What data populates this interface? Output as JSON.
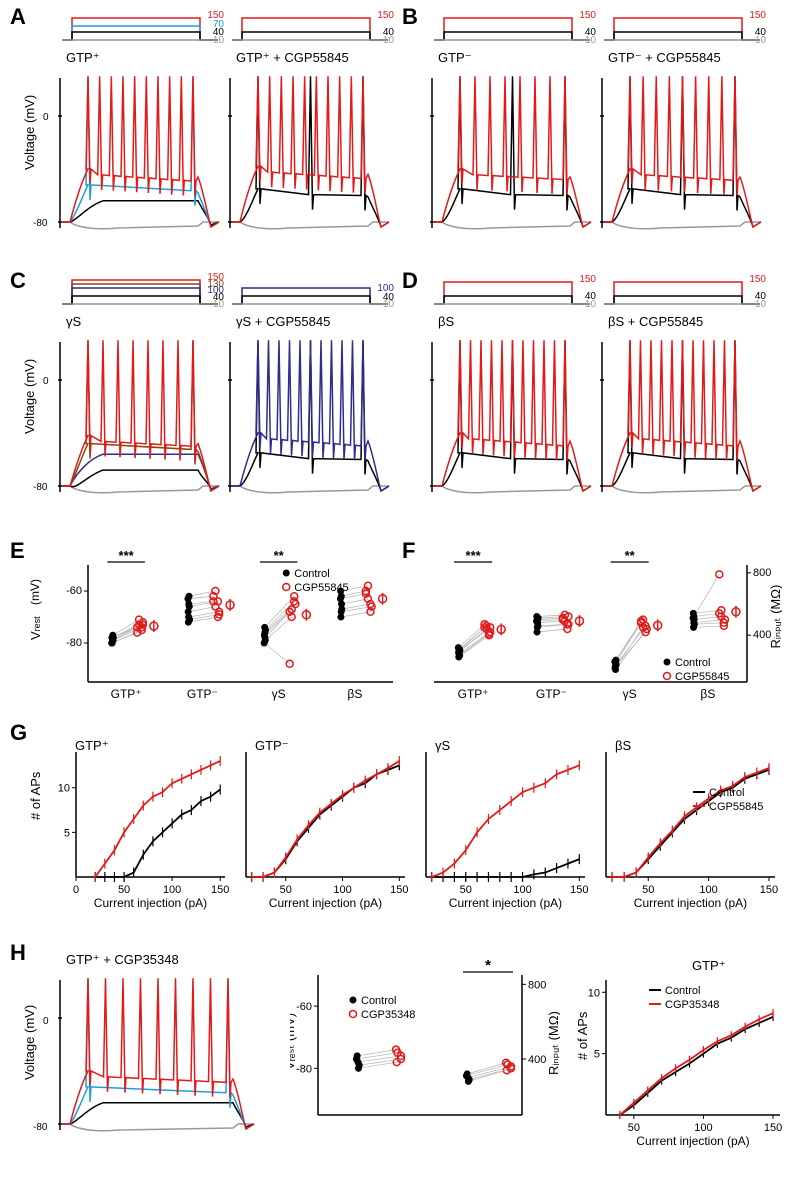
{
  "labels": {
    "A": "A",
    "B": "B",
    "C": "C",
    "D": "D",
    "E": "E",
    "F": "F",
    "G": "G",
    "H": "H"
  },
  "conditions": {
    "gtp_pos": "GTP⁺",
    "gtp_pos_cgp": "GTP⁺ + CGP55845",
    "gtp_neg": "GTP⁻",
    "gtp_neg_cgp": "GTP⁻ + CGP55845",
    "gammaS": "γS",
    "gammaS_cgp": "γS + CGP55845",
    "betaS": "βS",
    "betaS_cgp": "βS + CGP55845",
    "gtp_pos_cgp35": "GTP⁺ + CGP35348"
  },
  "stim_values": {
    "neg10": "-10",
    "v40": "40",
    "v70": "70",
    "v100": "100",
    "v130": "130",
    "v150": "150"
  },
  "colors": {
    "neg10": "#999999",
    "v40": "#000000",
    "v70": "#1f9dd9",
    "v100": "#2b2d8f",
    "v130": "#8b4513",
    "v150": "#e21a1a",
    "control": "#000000",
    "cgp": "#e21a1a",
    "cgp35": "#e21a1a"
  },
  "axes": {
    "voltage_label": "Voltage (mV)",
    "vrest_label": "V",
    "vrest_sub": "rest",
    "vrest_unit": "(mV)",
    "rinput_label": "R",
    "rinput_sub": "input",
    "rinput_unit": "(MΩ)",
    "nAPs": "# of APs",
    "current_label": "Current injection (pA)",
    "v0": "0",
    "vm80": "-80",
    "vm60": "-60",
    "r400": "400",
    "r800": "800",
    "ap5": "5",
    "ap10": "10",
    "c0": "0",
    "c50": "50",
    "c100": "100",
    "c150": "150"
  },
  "legend": {
    "control": "Control",
    "cgp55845": "CGP55845",
    "cgp35348": "CGP35348"
  },
  "sig": {
    "star1": "*",
    "star2": "**",
    "star3": "***"
  },
  "panelE": {
    "groups": [
      "GTP⁺",
      "GTP⁻",
      "γS",
      "βS"
    ],
    "sig": [
      "***",
      "",
      "**",
      ""
    ],
    "control": [
      [
        -78,
        -79,
        -80,
        -77,
        -78,
        -79,
        -80,
        -78
      ],
      [
        -70,
        -65,
        -72,
        -62,
        -68,
        -66,
        -63,
        -71
      ],
      [
        -76,
        -78,
        -74,
        -79,
        -77,
        -75,
        -80
      ],
      [
        -68,
        -62,
        -70,
        -65,
        -60,
        -67,
        -63
      ]
    ],
    "cgp": [
      [
        -72,
        -74,
        -75,
        -71,
        -73,
        -74,
        -76,
        -73
      ],
      [
        -68,
        -64,
        -70,
        -60,
        -66,
        -64,
        -62,
        -69
      ],
      [
        -65,
        -68,
        -62,
        -70,
        -67,
        -64,
        -88
      ],
      [
        -66,
        -60,
        -68,
        -63,
        -58,
        -65,
        -61
      ]
    ]
  },
  "panelF": {
    "sig": [
      "***",
      "",
      "**",
      ""
    ],
    "control": [
      [
        280,
        300,
        260,
        310,
        290,
        270,
        320,
        300
      ],
      [
        450,
        500,
        420,
        480,
        520,
        460,
        490,
        510
      ],
      [
        180,
        220,
        200,
        240,
        190,
        210,
        230
      ],
      [
        480,
        520,
        450,
        500,
        540,
        470,
        510
      ]
    ],
    "cgp": [
      [
        420,
        450,
        400,
        460,
        440,
        410,
        470,
        450
      ],
      [
        470,
        510,
        440,
        490,
        530,
        470,
        500,
        520
      ],
      [
        440,
        480,
        420,
        500,
        450,
        460,
        490
      ],
      [
        500,
        540,
        460,
        520,
        560,
        480,
        790
      ]
    ]
  },
  "panelG": {
    "x": [
      20,
      30,
      40,
      50,
      60,
      70,
      80,
      90,
      100,
      110,
      120,
      130,
      140,
      150
    ],
    "gtp_pos_control": [
      0,
      0,
      0,
      0,
      0.5,
      2.5,
      4,
      5,
      6,
      7,
      7.5,
      8.5,
      9,
      9.8
    ],
    "gtp_pos_cgp": [
      0,
      1.5,
      3,
      5,
      6.5,
      8,
      9,
      9.5,
      10.5,
      11,
      11.5,
      12,
      12.5,
      13
    ],
    "gtp_neg_control": [
      0,
      0,
      0.5,
      2,
      4,
      5.5,
      7,
      8,
      9,
      10,
      10.5,
      11.5,
      12,
      12.5
    ],
    "gtp_neg_cgp": [
      0,
      0,
      0.5,
      2.2,
      4.2,
      5.8,
      7.2,
      8.2,
      9.2,
      10,
      10.8,
      11.5,
      12.2,
      13
    ],
    "gammaS_control": [
      0,
      0,
      0,
      0,
      0,
      0,
      0,
      0,
      0,
      0.3,
      0.5,
      1,
      1.5,
      2
    ],
    "gammaS_cgp": [
      0,
      0.5,
      1.5,
      3,
      5,
      6.5,
      7.5,
      8.5,
      9.5,
      10,
      10.5,
      11.5,
      12,
      12.5
    ],
    "betaS_control": [
      0,
      0,
      0.5,
      2,
      3.5,
      5,
      6.5,
      7.5,
      8.5,
      9.5,
      10,
      11,
      11.5,
      12
    ],
    "betaS_cgp": [
      0,
      0,
      0.5,
      2.2,
      3.8,
      5.2,
      6.8,
      7.8,
      8.8,
      9.7,
      10.2,
      11.2,
      11.7,
      12.2
    ]
  },
  "panelH": {
    "vrest_control": [
      -78,
      -80,
      -76,
      -79,
      -77
    ],
    "vrest_cgp": [
      -76,
      -78,
      -74,
      -77,
      -75
    ],
    "rinput_control": [
      300,
      280,
      320,
      290,
      310
    ],
    "rinput_cgp": [
      360,
      340,
      380,
      350,
      370
    ],
    "x": [
      40,
      50,
      60,
      70,
      80,
      90,
      100,
      110,
      120,
      130,
      140,
      150
    ],
    "aps_control": [
      0,
      0.8,
      1.8,
      2.8,
      3.5,
      4.2,
      5,
      5.8,
      6.3,
      7,
      7.5,
      8
    ],
    "aps_cgp": [
      0,
      1,
      2,
      3,
      3.8,
      4.5,
      5.3,
      6,
      6.5,
      7.2,
      7.8,
      8.3
    ]
  }
}
